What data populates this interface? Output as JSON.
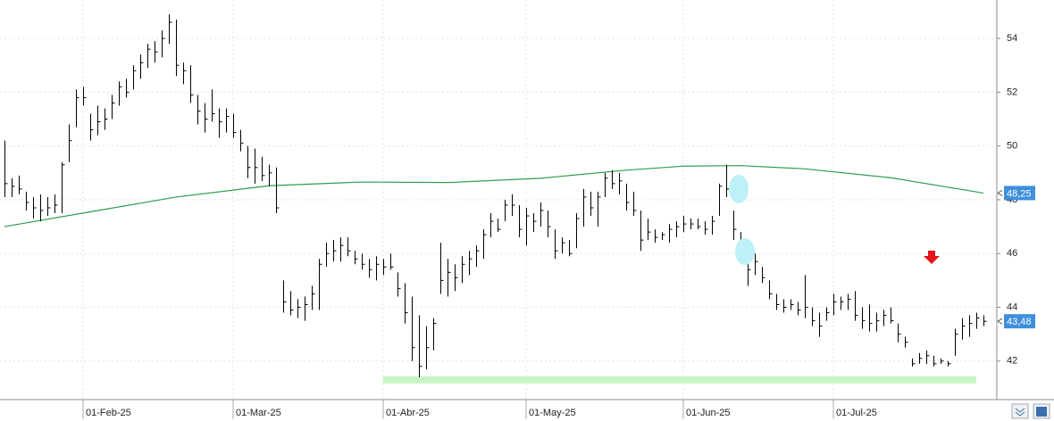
{
  "chart_data": {
    "type": "ohlc",
    "color": "#000000",
    "categories": [
      null,
      null,
      null,
      null,
      null,
      null,
      null,
      null,
      null,
      null,
      null,
      "01-Feb-25",
      null,
      null,
      null,
      null,
      null,
      null,
      null,
      null,
      null,
      null,
      null,
      null,
      null,
      null,
      null,
      null,
      null,
      null,
      null,
      null,
      "01-Mar-25",
      null,
      null,
      null,
      null,
      null,
      null,
      null,
      null,
      null,
      null,
      null,
      null,
      null,
      null,
      null,
      null,
      null,
      null,
      null,
      null,
      "01-Abr-25",
      null,
      null,
      null,
      null,
      null,
      null,
      null,
      null,
      null,
      null,
      null,
      null,
      null,
      null,
      null,
      null,
      null,
      null,
      null,
      "01-May-25",
      null,
      null,
      null,
      null,
      null,
      null,
      null,
      null,
      null,
      null,
      null,
      null,
      null,
      null,
      null,
      null,
      null,
      null,
      null,
      null,
      null,
      "01-Jun-25",
      null,
      null,
      null,
      null,
      null,
      null,
      null,
      null,
      null,
      null,
      null,
      null,
      null,
      null,
      null,
      null,
      null,
      null,
      null,
      null,
      "01-Jul-25",
      null,
      null,
      null,
      null,
      null,
      null,
      null,
      null,
      null,
      null,
      null,
      null,
      null,
      null,
      null,
      null,
      null,
      null,
      null,
      null,
      null
    ],
    "high": [
      50.2,
      48.8,
      48.9,
      48.3,
      48.1,
      48.2,
      48.1,
      48.2,
      49.4,
      50.8,
      52.1,
      52.2,
      51.2,
      51.5,
      51.4,
      51.9,
      52.4,
      52.5,
      53.0,
      53.4,
      53.8,
      53.9,
      54.3,
      54.9,
      54.7,
      53.1,
      53.0,
      51.9,
      51.6,
      52.1,
      51.4,
      51.4,
      51.2,
      50.6,
      50.0,
      49.9,
      49.6,
      49.3,
      49.2,
      45.0,
      44.6,
      44.3,
      44.4,
      44.8,
      45.8,
      46.4,
      46.5,
      46.6,
      46.6,
      46.1,
      46.0,
      45.8,
      45.9,
      45.8,
      46.0,
      45.3,
      44.9,
      44.4,
      43.7,
      43.3,
      43.6,
      46.4,
      45.8,
      45.6,
      45.9,
      46.1,
      46.3,
      46.9,
      47.5,
      47.3,
      48.0,
      48.2,
      47.8,
      47.7,
      47.5,
      47.9,
      47.6,
      46.9,
      46.6,
      46.5,
      47.5,
      48.4,
      48.3,
      48.3,
      49.0,
      49.1,
      49.0,
      48.6,
      48.3,
      47.6,
      47.3,
      46.9,
      46.8,
      47.1,
      47.2,
      47.4,
      47.3,
      47.3,
      47.2,
      47.4,
      48.6,
      49.3,
      47.6,
      46.8,
      46.4,
      46.0,
      45.5,
      45.0,
      44.5,
      44.3,
      44.3,
      44.2,
      45.2,
      44.0,
      43.8,
      44.0,
      44.5,
      44.4,
      44.5,
      44.6,
      44.0,
      44.1,
      43.8,
      43.9,
      44.0,
      43.4,
      42.9,
      42.1,
      42.3,
      42.4,
      42.2,
      42.1,
      42.0,
      43.2,
      43.6,
      43.7,
      43.8,
      43.7
    ],
    "low": [
      48.1,
      48.1,
      48.2,
      47.6,
      47.3,
      47.2,
      47.4,
      47.5,
      47.5,
      49.4,
      50.7,
      51.5,
      50.2,
      50.4,
      50.6,
      51.0,
      51.5,
      51.8,
      52.1,
      52.5,
      52.9,
      53.1,
      53.3,
      53.8,
      52.6,
      52.3,
      51.6,
      50.8,
      50.5,
      50.9,
      50.3,
      50.5,
      50.3,
      49.8,
      48.8,
      48.6,
      48.7,
      48.5,
      47.5,
      43.8,
      43.7,
      43.6,
      43.5,
      43.9,
      43.9,
      45.5,
      45.7,
      45.7,
      45.9,
      45.6,
      45.4,
      45.1,
      45.0,
      45.2,
      45.4,
      44.4,
      43.4,
      42.0,
      41.4,
      41.7,
      42.4,
      44.5,
      44.4,
      44.6,
      44.9,
      45.2,
      45.5,
      45.8,
      46.6,
      46.8,
      47.2,
      47.4,
      46.6,
      46.3,
      46.8,
      47.0,
      46.6,
      45.8,
      46.0,
      45.9,
      46.2,
      47.0,
      47.4,
      47.0,
      48.1,
      48.4,
      48.2,
      47.6,
      47.4,
      46.1,
      46.5,
      46.4,
      46.5,
      46.4,
      46.6,
      46.8,
      46.9,
      46.9,
      46.7,
      46.7,
      47.4,
      48.1,
      46.5,
      45.9,
      44.8,
      45.2,
      44.9,
      44.3,
      43.9,
      43.8,
      43.9,
      43.7,
      43.6,
      43.3,
      42.9,
      43.5,
      43.7,
      43.9,
      43.9,
      43.5,
      43.2,
      43.1,
      43.1,
      43.3,
      43.4,
      42.7,
      42.5,
      41.8,
      41.9,
      41.9,
      41.8,
      41.9,
      41.8,
      42.2,
      42.8,
      42.9,
      43.2,
      43.3
    ],
    "close": [
      48.6,
      48.5,
      48.4,
      47.9,
      47.7,
      47.6,
      47.7,
      47.8,
      49.3,
      50.2,
      51.8,
      51.8,
      50.6,
      50.9,
      51.0,
      51.6,
      52.2,
      52.0,
      52.8,
      53.1,
      53.6,
      53.5,
      54.0,
      54.6,
      53.0,
      52.8,
      51.9,
      51.3,
      51.0,
      51.2,
      50.9,
      51.1,
      50.5,
      50.1,
      49.2,
      49.2,
      48.9,
      49.0,
      47.7,
      44.2,
      43.9,
      44.0,
      44.1,
      44.5,
      45.6,
      46.0,
      46.1,
      46.3,
      46.1,
      45.8,
      45.6,
      45.4,
      45.6,
      45.5,
      45.5,
      44.7,
      43.8,
      42.5,
      41.8,
      42.5,
      43.4,
      45.0,
      45.3,
      45.1,
      45.6,
      45.8,
      46.1,
      46.7,
      47.2,
      46.9,
      47.8,
      47.8,
      46.9,
      47.4,
      47.2,
      47.6,
      47.0,
      46.1,
      46.4,
      46.0,
      47.3,
      48.1,
      47.7,
      48.1,
      48.8,
      48.6,
      48.7,
      47.9,
      47.6,
      46.5,
      46.8,
      46.6,
      46.7,
      46.9,
      47.0,
      47.1,
      47.1,
      47.0,
      46.9,
      47.2,
      48.5,
      48.4,
      46.9,
      46.2,
      45.4,
      45.7,
      45.1,
      44.5,
      44.1,
      44.0,
      44.1,
      43.9,
      44.0,
      43.5,
      43.3,
      43.8,
      44.2,
      44.2,
      44.3,
      43.7,
      43.5,
      43.4,
      43.5,
      43.7,
      43.5,
      43.0,
      42.7,
      41.9,
      42.1,
      42.2,
      41.9,
      42.0,
      41.9,
      43.0,
      43.3,
      43.4,
      43.6,
      43.48
    ],
    "moving_average": {
      "color": "#2e9e4a",
      "x": [
        0,
        12,
        24,
        37,
        50,
        62,
        75,
        87,
        95,
        103,
        112,
        124,
        137
      ],
      "values": [
        47.0,
        47.55,
        48.1,
        48.52,
        48.66,
        48.64,
        48.8,
        49.1,
        49.25,
        49.27,
        49.15,
        48.82,
        48.25
      ]
    },
    "support": {
      "value": 41.3,
      "from": 53,
      "to": 136,
      "color": "#c8f5c8"
    },
    "price_tags": [
      {
        "value": 48.25,
        "label": "48,25"
      },
      {
        "value": 43.48,
        "label": "43,48"
      }
    ],
    "ylim": [
      40.6,
      55.43
    ],
    "yticks": [
      42,
      44,
      46,
      48,
      50,
      52,
      54
    ],
    "grid": true
  }
}
